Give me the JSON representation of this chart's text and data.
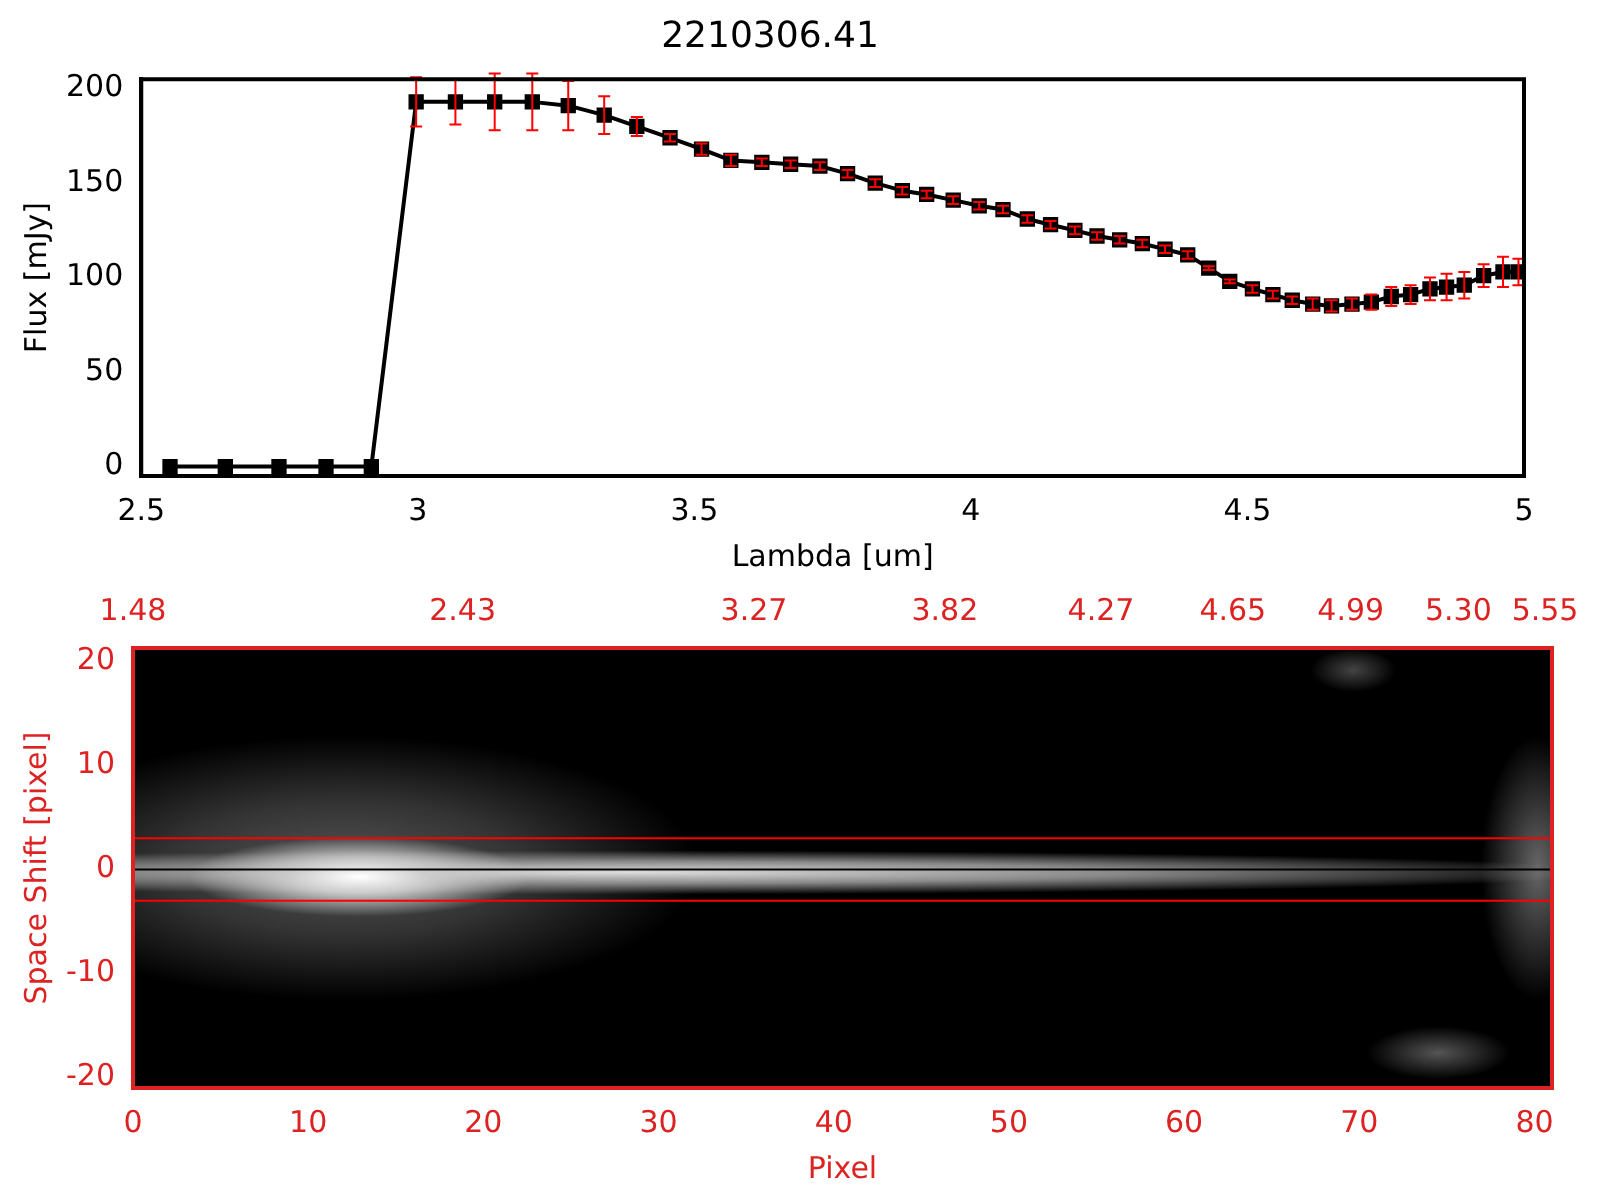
{
  "chart_data": [
    {
      "type": "line",
      "title": "2210306.41",
      "xlabel": "Lambda [um]",
      "ylabel": "Flux [mJy]",
      "x": [
        2.552,
        2.652,
        2.749,
        2.834,
        2.916,
        2.997,
        3.068,
        3.139,
        3.207,
        3.272,
        3.337,
        3.396,
        3.456,
        3.513,
        3.566,
        3.622,
        3.674,
        3.727,
        3.777,
        3.827,
        3.876,
        3.92,
        3.968,
        4.015,
        4.058,
        4.102,
        4.144,
        4.188,
        4.228,
        4.269,
        4.31,
        4.351,
        4.392,
        4.43,
        4.468,
        4.509,
        4.546,
        4.581,
        4.618,
        4.652,
        4.689,
        4.724,
        4.76,
        4.795,
        4.83,
        4.86,
        4.892,
        4.927,
        4.962,
        4.99
      ],
      "series": [
        {
          "color": "#000000",
          "values": [
            0,
            0,
            0,
            0,
            0,
            193,
            193,
            193,
            193,
            191,
            186,
            180,
            174,
            168,
            162,
            161,
            160,
            159,
            155,
            150,
            146,
            144,
            141,
            138,
            136,
            131,
            128,
            125,
            122,
            120,
            118,
            115,
            112,
            105,
            98,
            94,
            91,
            88,
            86,
            85,
            86,
            87,
            90,
            91,
            94,
            95,
            96,
            101,
            103,
            103
          ],
          "errors": [
            null,
            null,
            null,
            null,
            null,
            13,
            12,
            15,
            15,
            13,
            10,
            5,
            2,
            3,
            3,
            2,
            2,
            2,
            2,
            2,
            2,
            2,
            2,
            2,
            2,
            2,
            2,
            2,
            2,
            2,
            2,
            2,
            2,
            1,
            1,
            2,
            2,
            2,
            3,
            3,
            3,
            4,
            5,
            5,
            6,
            7,
            7,
            6,
            8,
            7
          ]
        }
      ],
      "xlim": [
        2.5,
        5.0
      ],
      "xticks": [
        2.5,
        3.0,
        3.5,
        4.0,
        4.5,
        5.0
      ],
      "ylim": [
        -5,
        205
      ],
      "yticks": [
        0,
        50,
        100,
        150,
        200
      ],
      "grid": false,
      "legend": false,
      "marker": "square",
      "line_style": "solid"
    },
    {
      "type": "line",
      "xlabel": "Pixel",
      "ylabel": "Space Shift [pixel]",
      "xlim": [
        0,
        81
      ],
      "xticks": [
        0,
        10,
        20,
        30,
        40,
        50,
        60,
        70,
        80
      ],
      "ylim": [
        -21,
        21.3
      ],
      "yticks": [
        -20,
        -10,
        0,
        10,
        20
      ],
      "x2lim": [
        1.48,
        5.57
      ],
      "x2ticks": [
        {
          "value": 1.48,
          "label": "1.48"
        },
        {
          "value": 2.43,
          "label": "2.43"
        },
        {
          "value": 3.27,
          "label": "3.27"
        },
        {
          "value": 3.82,
          "label": "3.82"
        },
        {
          "value": 4.27,
          "label": "4.27"
        },
        {
          "value": 4.65,
          "label": "4.65"
        },
        {
          "value": 4.99,
          "label": "4.99"
        },
        {
          "value": 5.3,
          "label": "5.30"
        },
        {
          "value": 5.55,
          "label": "5.55"
        }
      ],
      "ref_lines": [
        {
          "axis": "y",
          "value": 3,
          "color": "#ff0000"
        },
        {
          "axis": "y",
          "value": -3,
          "color": "#ff0000"
        },
        {
          "axis": "y",
          "value": 0,
          "color": "#000000"
        }
      ],
      "legend": false
    }
  ]
}
